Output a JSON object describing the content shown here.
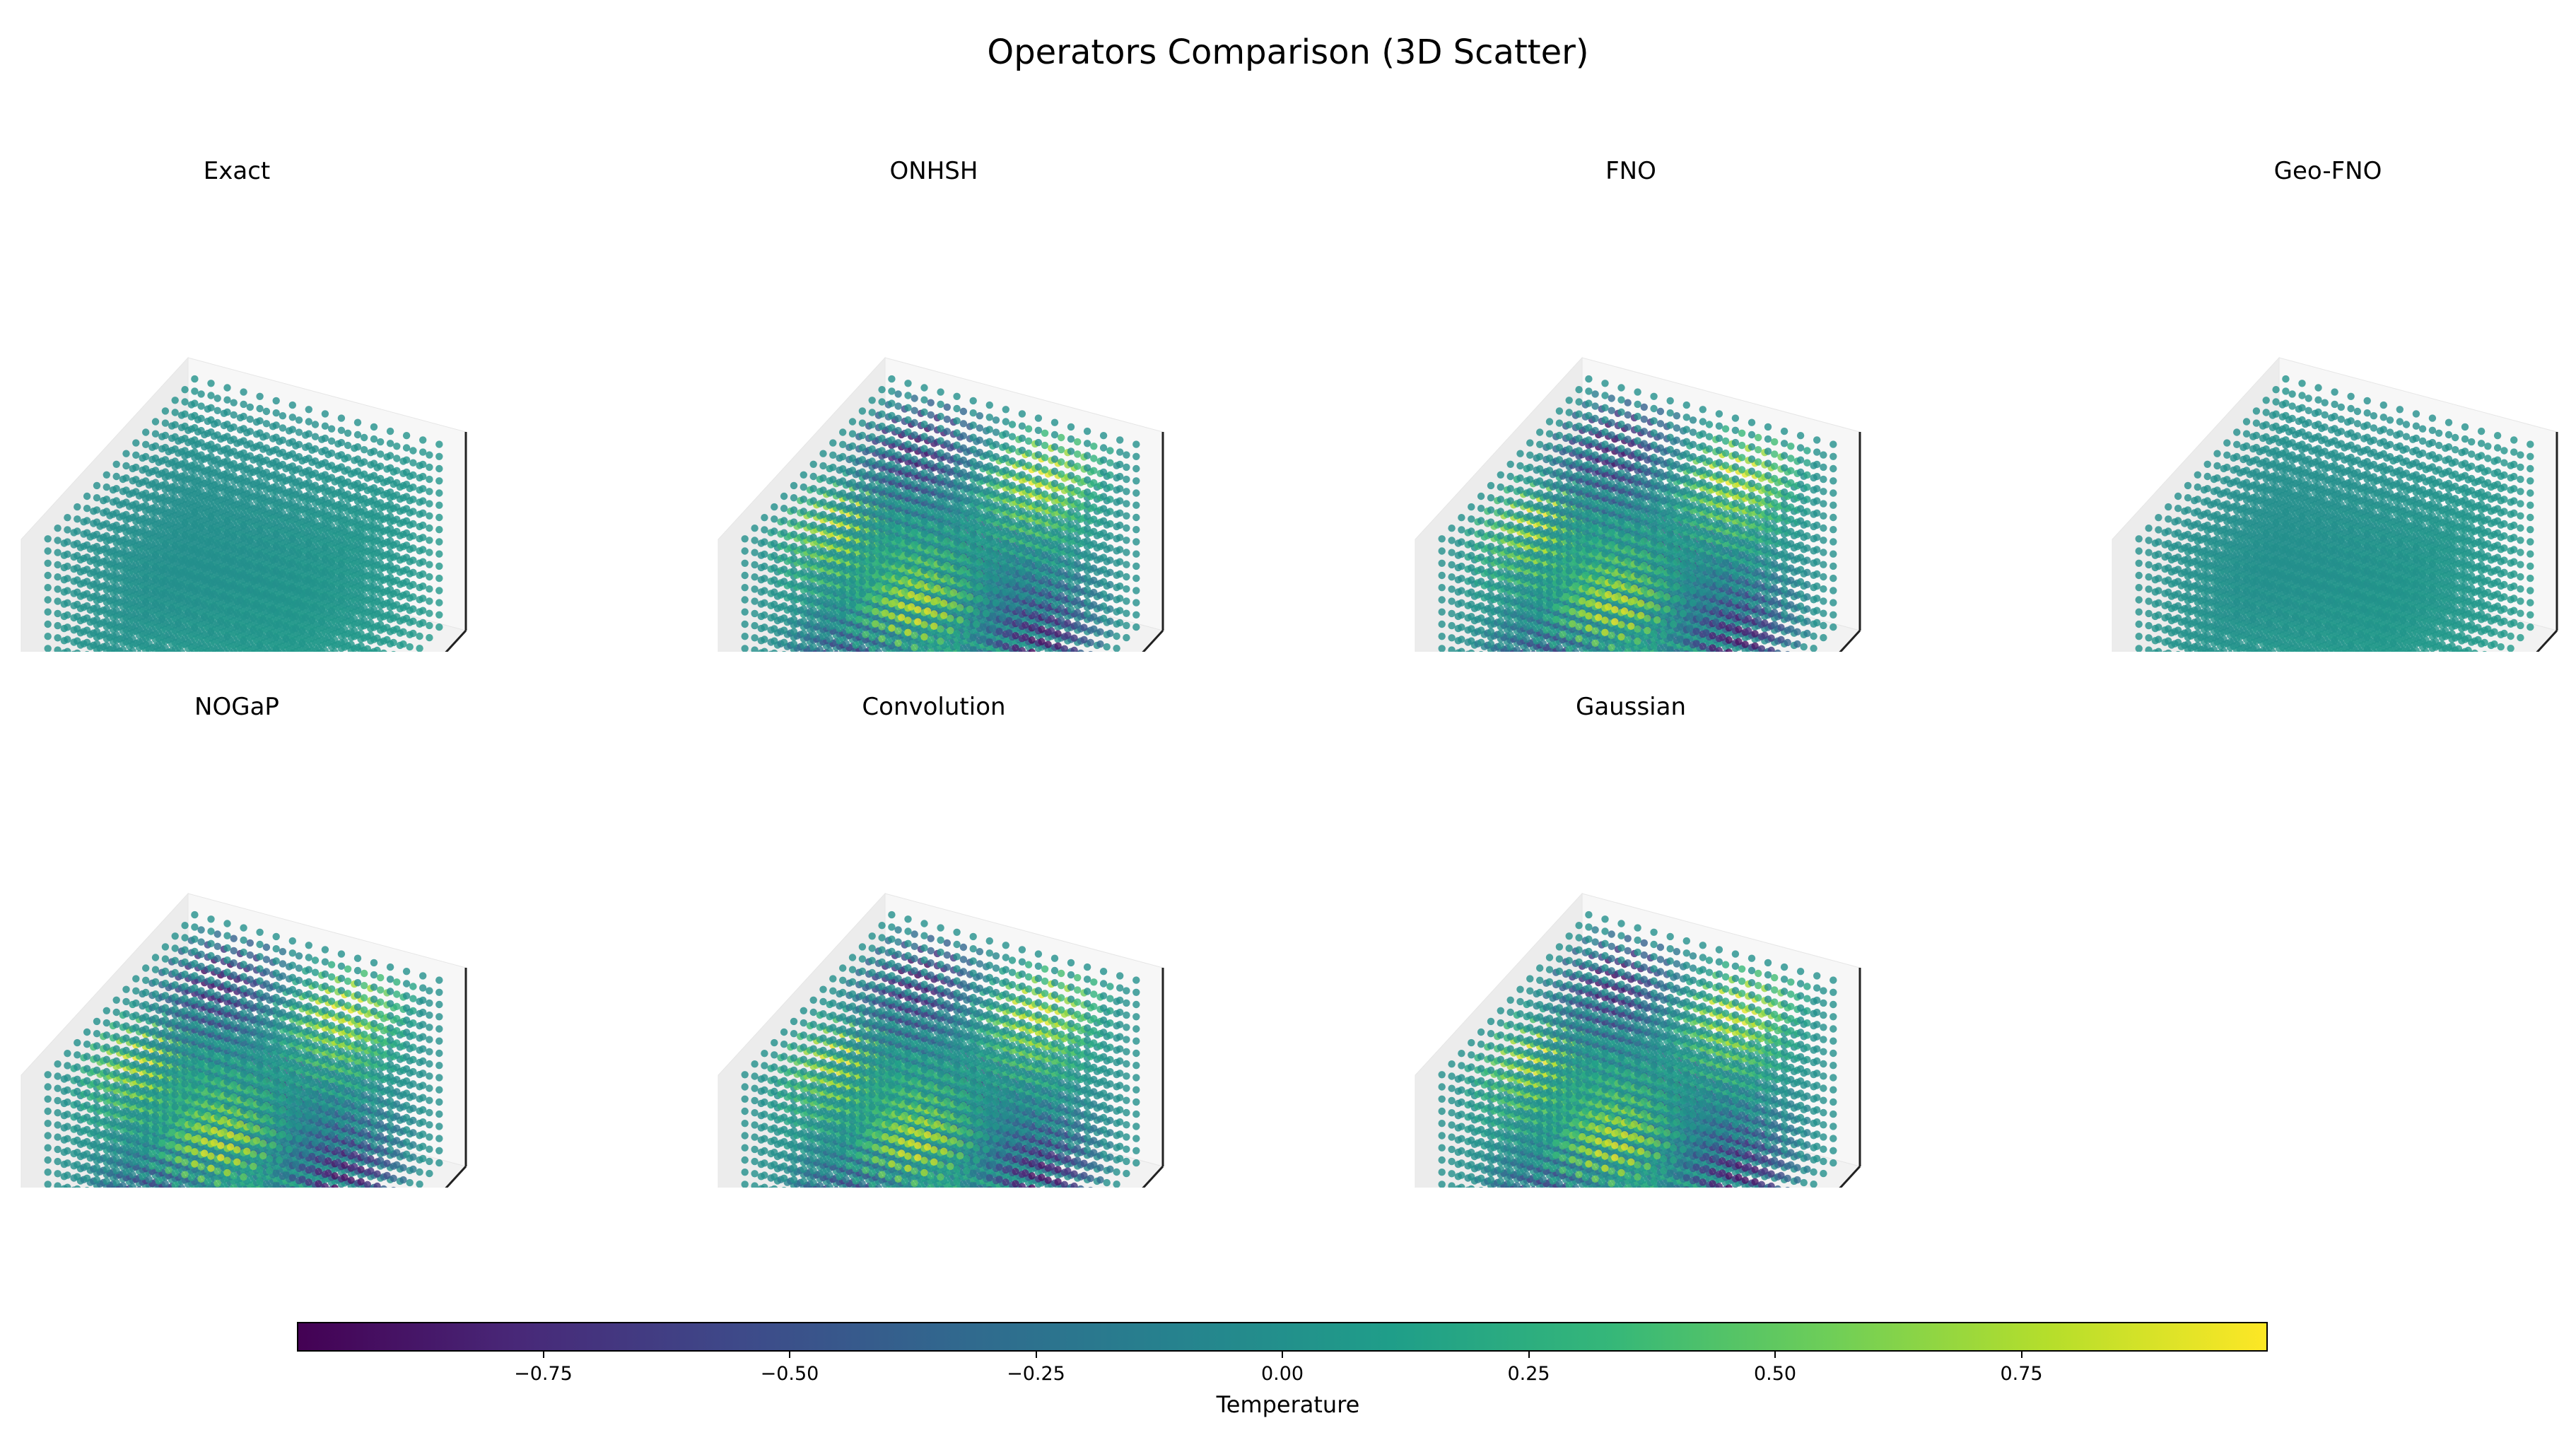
{
  "figure": {
    "title": "Operators Comparison (3D Scatter)"
  },
  "chart_data": [
    {
      "type": "scatter",
      "subtype": "3d-scatter",
      "title": "Exact",
      "field": "near-uniform",
      "value_range": [
        -0.05,
        0.1
      ],
      "colormap": "viridis",
      "axes": "ticks hidden"
    },
    {
      "type": "scatter",
      "subtype": "3d-scatter",
      "title": "ONHSH",
      "field": "sinusoidal",
      "value_range": [
        -1,
        1
      ],
      "colormap": "viridis",
      "axes": "ticks hidden"
    },
    {
      "type": "scatter",
      "subtype": "3d-scatter",
      "title": "FNO",
      "field": "sinusoidal",
      "value_range": [
        -1,
        1
      ],
      "colormap": "viridis",
      "axes": "ticks hidden"
    },
    {
      "type": "scatter",
      "subtype": "3d-scatter",
      "title": "Geo-FNO",
      "field": "near-uniform",
      "value_range": [
        -0.05,
        0.1
      ],
      "colormap": "viridis",
      "axes": "ticks hidden"
    },
    {
      "type": "scatter",
      "subtype": "3d-scatter",
      "title": "NOGaP",
      "field": "sinusoidal",
      "value_range": [
        -1,
        1
      ],
      "colormap": "viridis",
      "axes": "ticks hidden"
    },
    {
      "type": "scatter",
      "subtype": "3d-scatter",
      "title": "Convolution",
      "field": "sinusoidal",
      "value_range": [
        -1,
        1
      ],
      "colormap": "viridis",
      "axes": "ticks hidden"
    },
    {
      "type": "scatter",
      "subtype": "3d-scatter",
      "title": "Gaussian",
      "field": "sinusoidal",
      "value_range": [
        -1,
        1
      ],
      "colormap": "viridis",
      "axes": "ticks hidden"
    }
  ],
  "colorbar": {
    "label": "Temperature",
    "range": [
      -1,
      1
    ],
    "colormap": "viridis",
    "ticks": [
      {
        "value": -0.75,
        "label": "−0.75"
      },
      {
        "value": -0.5,
        "label": "−0.50"
      },
      {
        "value": -0.25,
        "label": "−0.25"
      },
      {
        "value": 0,
        "label": "0.00"
      },
      {
        "value": 0.25,
        "label": "0.25"
      },
      {
        "value": 0.5,
        "label": "0.50"
      },
      {
        "value": 0.75,
        "label": "0.75"
      }
    ]
  }
}
